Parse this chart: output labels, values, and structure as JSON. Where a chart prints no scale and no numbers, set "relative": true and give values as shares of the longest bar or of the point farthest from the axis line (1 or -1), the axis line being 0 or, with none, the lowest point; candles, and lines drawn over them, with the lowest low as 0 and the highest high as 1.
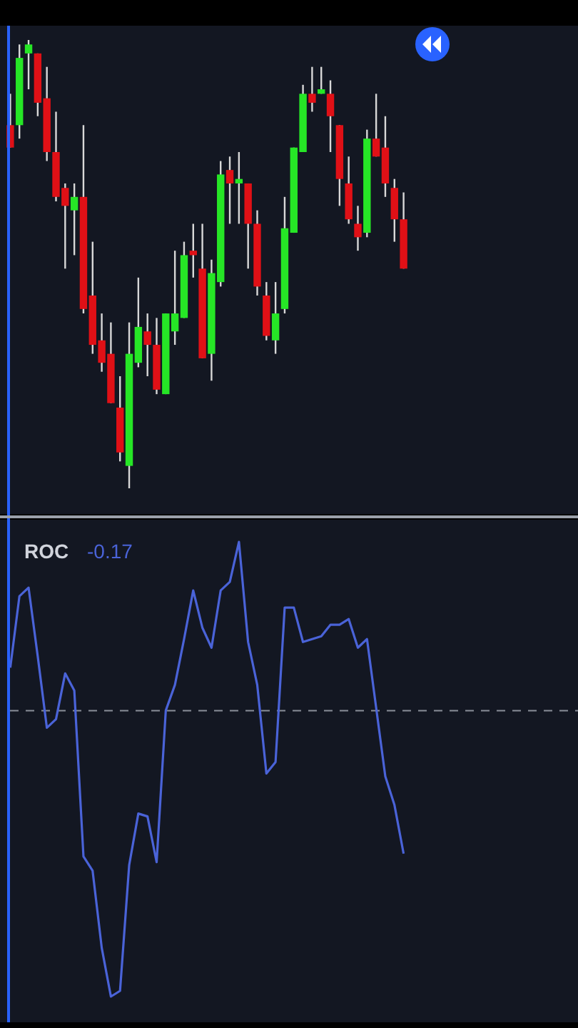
{
  "chart_data": [
    {
      "type": "candlestick",
      "relative": true,
      "categories": [
        null,
        null,
        null,
        null,
        null,
        null,
        null,
        null,
        null,
        null,
        null,
        null,
        null,
        null,
        null,
        null,
        null,
        null,
        null,
        null,
        null,
        null,
        null,
        null,
        null,
        null,
        null,
        null,
        null,
        null,
        null,
        null,
        null,
        null,
        null,
        null,
        null,
        null,
        null,
        null,
        null,
        null,
        null,
        null
      ],
      "ohlc": [
        [
          0.81,
          0.88,
          0.76,
          0.76
        ],
        [
          0.81,
          0.99,
          0.78,
          0.96
        ],
        [
          0.97,
          1,
          0.89,
          0.99
        ],
        [
          0.97,
          0.97,
          0.83,
          0.86
        ],
        [
          0.87,
          0.94,
          0.73,
          0.75
        ],
        [
          0.75,
          0.84,
          0.64,
          0.65
        ],
        [
          0.67,
          0.68,
          0.49,
          0.63
        ],
        [
          0.62,
          0.68,
          0.52,
          0.65
        ],
        [
          0.65,
          0.81,
          0.39,
          0.4
        ],
        [
          0.43,
          0.55,
          0.3,
          0.32
        ],
        [
          0.33,
          0.39,
          0.26,
          0.28
        ],
        [
          0.3,
          0.37,
          0.19,
          0.19
        ],
        [
          0.18,
          0.25,
          0.06,
          0.08
        ],
        [
          0.05,
          0.37,
          0,
          0.3
        ],
        [
          0.28,
          0.47,
          0.27,
          0.36
        ],
        [
          0.35,
          0.39,
          0.25,
          0.32
        ],
        [
          0.32,
          0.38,
          0.21,
          0.22
        ],
        [
          0.21,
          0.39,
          0.21,
          0.39
        ],
        [
          0.35,
          0.53,
          0.32,
          0.39
        ],
        [
          0.38,
          0.55,
          0.38,
          0.52
        ],
        [
          0.53,
          0.59,
          0.47,
          0.52
        ],
        [
          0.49,
          0.59,
          0.29,
          0.29
        ],
        [
          0.3,
          0.51,
          0.24,
          0.48
        ],
        [
          0.46,
          0.73,
          0.45,
          0.7
        ],
        [
          0.71,
          0.74,
          0.59,
          0.68
        ],
        [
          0.68,
          0.75,
          0.59,
          0.69
        ],
        [
          0.68,
          0.68,
          0.49,
          0.59
        ],
        [
          0.59,
          0.62,
          0.43,
          0.45
        ],
        [
          0.43,
          0.46,
          0.33,
          0.34
        ],
        [
          0.33,
          0.46,
          0.3,
          0.39
        ],
        [
          0.4,
          0.65,
          0.39,
          0.58
        ],
        [
          0.57,
          0.76,
          0.57,
          0.76
        ],
        [
          0.75,
          0.9,
          0.75,
          0.88
        ],
        [
          0.88,
          0.94,
          0.84,
          0.86
        ],
        [
          0.88,
          0.94,
          0.88,
          0.89
        ],
        [
          0.88,
          0.91,
          0.75,
          0.83
        ],
        [
          0.81,
          0.81,
          0.63,
          0.69
        ],
        [
          0.68,
          0.74,
          0.59,
          0.6
        ],
        [
          0.59,
          0.63,
          0.53,
          0.56
        ],
        [
          0.57,
          0.8,
          0.56,
          0.78
        ],
        [
          0.78,
          0.88,
          0.74,
          0.74
        ],
        [
          0.76,
          0.83,
          0.65,
          0.68
        ],
        [
          0.67,
          0.69,
          0.55,
          0.6
        ],
        [
          0.6,
          0.66,
          0.49,
          0.49
        ]
      ],
      "colors": [
        "#e01016",
        "#26e626",
        "#26e626",
        "#e01016",
        "#e01016",
        "#e01016",
        "#e01016",
        "#26e626",
        "#e01016",
        "#e01016",
        "#e01016",
        "#e01016",
        "#e01016",
        "#26e626",
        "#26e626",
        "#e01016",
        "#e01016",
        "#26e626",
        "#26e626",
        "#26e626",
        "#e01016",
        "#e01016",
        "#26e626",
        "#26e626",
        "#e01016",
        "#26e626",
        "#e01016",
        "#e01016",
        "#e01016",
        "#26e626",
        "#26e626",
        "#26e626",
        "#26e626",
        "#e01016",
        "#26e626",
        "#e01016",
        "#e01016",
        "#e01016",
        "#e01016",
        "#26e626",
        "#e01016",
        "#e01016",
        "#e01016",
        "#e01016"
      ]
    },
    {
      "type": "line",
      "title": "ROC",
      "subtitle": "-0.17",
      "relative": true,
      "categories": [
        null,
        null,
        null,
        null,
        null,
        null,
        null,
        null,
        null,
        null,
        null,
        null,
        null,
        null,
        null,
        null,
        null,
        null,
        null,
        null,
        null,
        null,
        null,
        null,
        null,
        null,
        null,
        null,
        null,
        null,
        null,
        null,
        null,
        null,
        null,
        null,
        null,
        null,
        null,
        null,
        null,
        null,
        null,
        null
      ],
      "ref_lines": [
        {
          "axis": "y",
          "value": 0,
          "color": "#8a8f99",
          "line_style": "dashed"
        }
      ],
      "series": [
        {
          "color": "#4a63d8",
          "values": [
            0.15,
            0.4,
            0.43,
            0.19,
            -0.06,
            -0.03,
            0.13,
            0.07,
            -0.51,
            -0.56,
            -0.83,
            -1,
            -0.98,
            -0.54,
            -0.36,
            -0.37,
            -0.53,
            0,
            0.09,
            0.25,
            0.42,
            0.29,
            0.22,
            0.42,
            0.45,
            0.59,
            0.24,
            0.09,
            -0.22,
            -0.18,
            0.36,
            0.36,
            0.24,
            0.25,
            0.26,
            0.3,
            0.3,
            0.32,
            0.22,
            0.25,
            0.01,
            -0.23,
            -0.33,
            -0.5
          ]
        }
      ]
    }
  ]
}
